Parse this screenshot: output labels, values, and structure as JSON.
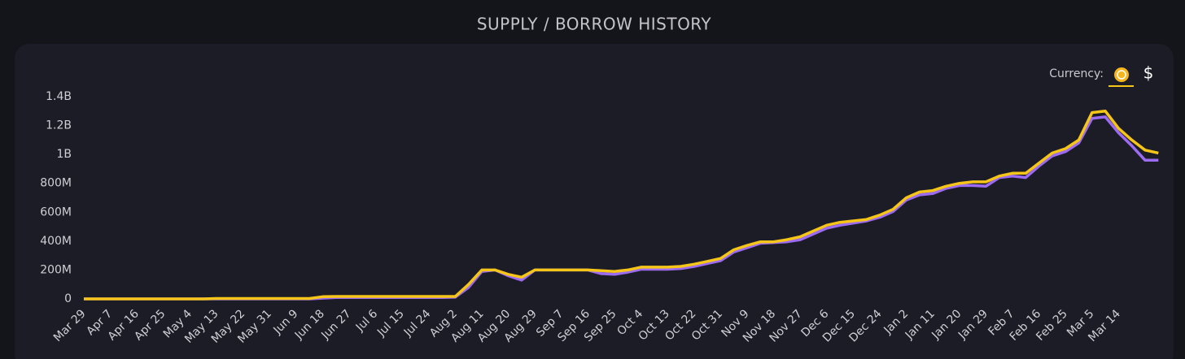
{
  "chart_data": {
    "type": "line",
    "title": "SUPPLY / BORROW HISTORY",
    "currency_label": "Currency:",
    "currency_alt": "$",
    "categories": [
      "Mar 29",
      null,
      "Apr 7",
      null,
      "Apr 16",
      null,
      "Apr 25",
      null,
      "May 4",
      null,
      "May 13",
      null,
      "May 22",
      null,
      "May 31",
      null,
      "Jun 9",
      null,
      "Jun 18",
      null,
      "Jun 27",
      null,
      "Jul 6",
      null,
      "Jul 15",
      null,
      "Jul 24",
      null,
      "Aug 2",
      null,
      "Aug 11",
      null,
      "Aug 20",
      null,
      "Aug 29",
      null,
      "Sep 7",
      null,
      "Sep 16",
      null,
      "Sep 25",
      null,
      "Oct 4",
      null,
      "Oct 13",
      null,
      "Oct 22",
      null,
      "Oct 31",
      null,
      "Nov 9",
      null,
      "Nov 18",
      null,
      "Nov 27",
      null,
      "Dec 6",
      null,
      "Dec 15",
      null,
      "Dec 24",
      null,
      "Jan 2",
      null,
      "Jan 11",
      null,
      "Jan 20",
      null,
      "Jan 29",
      null,
      "Feb 7",
      null,
      "Feb 16",
      null,
      "Feb 25",
      null,
      "Mar 5",
      null,
      "Mar 14",
      null,
      null,
      null
    ],
    "series": [
      {
        "color": "#9b6bf2",
        "values": [
          0,
          0,
          0,
          0,
          0,
          0,
          0,
          0,
          0,
          0,
          0,
          0,
          0,
          0,
          0,
          0,
          0,
          0,
          5,
          10,
          10,
          10,
          10,
          10,
          10,
          10,
          10,
          10,
          12,
          80,
          190,
          200,
          160,
          130,
          200,
          200,
          200,
          200,
          200,
          175,
          170,
          185,
          205,
          205,
          205,
          210,
          225,
          245,
          265,
          325,
          355,
          385,
          390,
          395,
          410,
          450,
          490,
          510,
          525,
          540,
          565,
          605,
          685,
          720,
          730,
          765,
          785,
          785,
          780,
          840,
          850,
          840,
          920,
          990,
          1020,
          1080,
          1250,
          1260,
          1150,
          1060,
          960,
          960
        ]
      },
      {
        "color": "#f5c518",
        "values": [
          0,
          0,
          0,
          0,
          0,
          0,
          0,
          0,
          0,
          0,
          3,
          3,
          3,
          3,
          3,
          3,
          3,
          3,
          15,
          17,
          17,
          17,
          17,
          17,
          17,
          17,
          17,
          17,
          17,
          100,
          200,
          200,
          170,
          150,
          200,
          200,
          200,
          200,
          200,
          195,
          190,
          200,
          220,
          220,
          220,
          225,
          240,
          260,
          280,
          340,
          370,
          395,
          395,
          410,
          430,
          470,
          510,
          530,
          540,
          550,
          580,
          620,
          700,
          740,
          750,
          780,
          800,
          810,
          810,
          850,
          870,
          870,
          940,
          1010,
          1040,
          1100,
          1290,
          1300,
          1180,
          1100,
          1030,
          1010
        ]
      }
    ],
    "ylim": [
      0,
      1400
    ],
    "yticks": [
      0,
      {
        "value": 200,
        "label": "200M"
      },
      {
        "value": 400,
        "label": "400M"
      },
      {
        "value": 600,
        "label": "600M"
      },
      {
        "value": 800,
        "label": "800M"
      },
      {
        "value": 1000,
        "label": "1B"
      },
      {
        "value": 1200,
        "label": "1.2B"
      },
      {
        "value": 1400,
        "label": "1.4B"
      }
    ]
  }
}
